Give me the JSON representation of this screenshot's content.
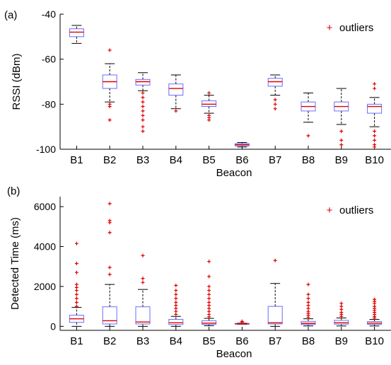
{
  "colors": {
    "box": "#6b6bff",
    "median": "#e00000",
    "whisker": "#000000",
    "outlier": "#e00000",
    "axis": "#000000"
  },
  "chart_data": [
    {
      "type": "box",
      "panel_label": "(a)",
      "xlabel": "Beacon",
      "ylabel": "RSSI (dBm)",
      "ylim": [
        -100,
        -40
      ],
      "yticks": [
        -100,
        -80,
        -60,
        -40
      ],
      "legend": {
        "label": "outliers",
        "position": "top-right"
      },
      "categories": [
        "B1",
        "B2",
        "B3",
        "B4",
        "B5",
        "B6",
        "B7",
        "B8",
        "B9",
        "B10"
      ],
      "boxes": [
        {
          "whisker_low": -53,
          "q1": -50,
          "median": -48,
          "q3": -46.5,
          "whisker_high": -45,
          "outliers": []
        },
        {
          "whisker_low": -79,
          "q1": -73,
          "median": -70,
          "q3": -67,
          "whisker_high": -62,
          "outliers": [
            -56,
            -80,
            -81,
            -87
          ]
        },
        {
          "whisker_low": -74,
          "q1": -71.5,
          "median": -70,
          "q3": -69,
          "whisker_high": -66,
          "outliers": [
            -75,
            -77,
            -79,
            -81,
            -83,
            -85,
            -87,
            -90,
            -92
          ]
        },
        {
          "whisker_low": -82,
          "q1": -76,
          "median": -73,
          "q3": -71,
          "whisker_high": -67,
          "outliers": [
            -83
          ]
        },
        {
          "whisker_low": -84,
          "q1": -81,
          "median": -80,
          "q3": -78.5,
          "whisker_high": -76,
          "outliers": [
            -75,
            -85,
            -86,
            -87
          ]
        },
        {
          "whisker_low": -99,
          "q1": -98.5,
          "median": -98,
          "q3": -97.5,
          "whisker_high": -97,
          "outliers": []
        },
        {
          "whisker_low": -76,
          "q1": -72,
          "median": -70,
          "q3": -68.5,
          "whisker_high": -67,
          "outliers": [
            -78,
            -80,
            -82
          ]
        },
        {
          "whisker_low": -88,
          "q1": -83,
          "median": -81,
          "q3": -79,
          "whisker_high": -75,
          "outliers": [
            -94
          ]
        },
        {
          "whisker_low": -89,
          "q1": -83,
          "median": -81,
          "q3": -79,
          "whisker_high": -73,
          "outliers": [
            -92,
            -96,
            -98
          ]
        },
        {
          "whisker_low": -90,
          "q1": -84,
          "median": -81,
          "q3": -80,
          "whisker_high": -77,
          "outliers": [
            -71,
            -73,
            -92,
            -94,
            -96,
            -98,
            -99
          ]
        }
      ]
    },
    {
      "type": "box",
      "panel_label": "(b)",
      "xlabel": "Beacon",
      "ylabel": "Detected Time (ms)",
      "ylim": [
        -200,
        6500
      ],
      "yticks": [
        0,
        2000,
        4000,
        6000
      ],
      "legend": {
        "label": "outliers",
        "position": "top-right"
      },
      "categories": [
        "B1",
        "B2",
        "B3",
        "B4",
        "B5",
        "B6",
        "B7",
        "B8",
        "B9",
        "B10"
      ],
      "boxes": [
        {
          "whisker_low": 0,
          "q1": 200,
          "median": 380,
          "q3": 560,
          "whisker_high": 950,
          "outliers": [
            1000,
            1200,
            1400,
            1600,
            1800,
            1950,
            2100,
            2700,
            3150,
            4150
          ]
        },
        {
          "whisker_low": 0,
          "q1": 120,
          "median": 280,
          "q3": 980,
          "whisker_high": 2100,
          "outliers": [
            2600,
            2950,
            4700,
            5200,
            5300,
            6150
          ]
        },
        {
          "whisker_low": 0,
          "q1": 120,
          "median": 220,
          "q3": 980,
          "whisker_high": 1850,
          "outliers": [
            2200,
            2400,
            3550
          ]
        },
        {
          "whisker_low": 0,
          "q1": 90,
          "median": 180,
          "q3": 350,
          "whisker_high": 500,
          "outliers": [
            600,
            750,
            900,
            1050,
            1200,
            1400,
            1600,
            1800,
            2050
          ]
        },
        {
          "whisker_low": 30,
          "q1": 100,
          "median": 160,
          "q3": 280,
          "whisker_high": 400,
          "outliers": [
            480,
            600,
            750,
            900,
            1050,
            1200,
            1400,
            1600,
            1800,
            2000,
            2500,
            3250
          ]
        },
        {
          "whisker_low": 100,
          "q1": 120,
          "median": 130,
          "q3": 145,
          "whisker_high": 160,
          "outliers": [
            220,
            250
          ]
        },
        {
          "whisker_low": 0,
          "q1": 120,
          "median": 180,
          "q3": 1000,
          "whisker_high": 2150,
          "outliers": [
            3300
          ]
        },
        {
          "whisker_low": 20,
          "q1": 90,
          "median": 150,
          "q3": 250,
          "whisker_high": 380,
          "outliers": [
            450,
            550,
            650,
            750,
            900,
            1050,
            1200,
            1400,
            1600,
            2100
          ]
        },
        {
          "whisker_low": 20,
          "q1": 110,
          "median": 180,
          "q3": 300,
          "whisker_high": 420,
          "outliers": [
            500,
            600,
            700,
            850,
            1000,
            1150
          ]
        },
        {
          "whisker_low": 20,
          "q1": 100,
          "median": 160,
          "q3": 240,
          "whisker_high": 350,
          "outliers": [
            420,
            500,
            600,
            700,
            800,
            900,
            1000,
            1150,
            1250,
            1350
          ]
        }
      ]
    }
  ]
}
